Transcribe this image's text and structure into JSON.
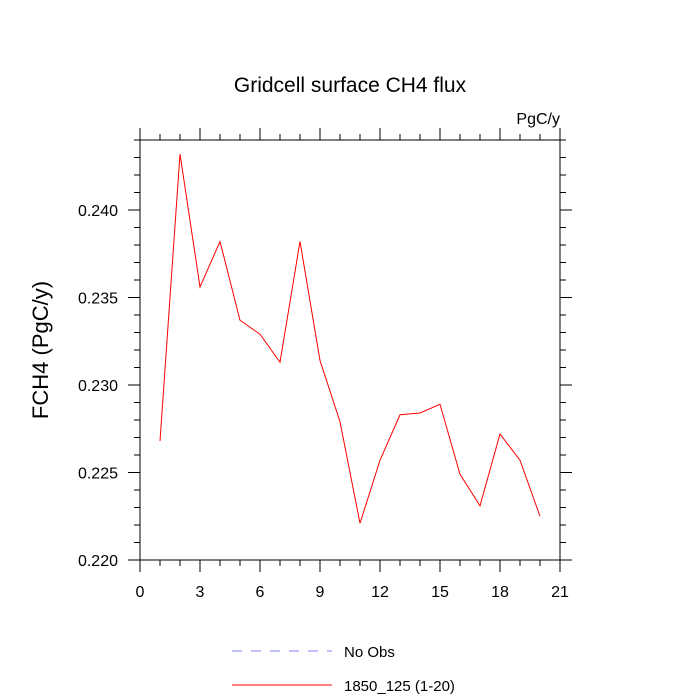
{
  "chart_data": {
    "type": "line",
    "title": "Gridcell surface CH4 flux",
    "units_label": "PgC/y",
    "ylabel": "FCH4  (PgC/y)",
    "xlabel": "",
    "xlim": [
      0,
      21
    ],
    "ylim": [
      0.22,
      0.244
    ],
    "x_ticks": [
      0,
      3,
      6,
      9,
      12,
      15,
      18,
      21
    ],
    "x_tick_labels": [
      "0",
      "3",
      "6",
      "9",
      "12",
      "15",
      "18",
      "21"
    ],
    "y_ticks": [
      0.22,
      0.225,
      0.23,
      0.235,
      0.24
    ],
    "y_tick_labels": [
      "0.220",
      "0.225",
      "0.230",
      "0.235",
      "0.240"
    ],
    "grid": false,
    "legend_position": "bottom",
    "series": [
      {
        "name": "1850_125 (1-20)",
        "color": "#ff0000",
        "style": "solid",
        "x": [
          1,
          2,
          3,
          4,
          5,
          6,
          7,
          8,
          9,
          10,
          11,
          12,
          13,
          14,
          15,
          16,
          17,
          18,
          19,
          20
        ],
        "values": [
          0.2268,
          0.2432,
          0.2356,
          0.2382,
          0.2337,
          0.2329,
          0.2313,
          0.2382,
          0.2314,
          0.2279,
          0.2221,
          0.2257,
          0.2283,
          0.2284,
          0.2289,
          0.2249,
          0.2231,
          0.2272,
          0.2257,
          0.2225
        ]
      }
    ],
    "legend": [
      {
        "label": "No Obs",
        "color": "#8080ff",
        "style": "dashed"
      },
      {
        "label": "1850_125 (1-20)",
        "color": "#ff0000",
        "style": "solid"
      }
    ]
  }
}
